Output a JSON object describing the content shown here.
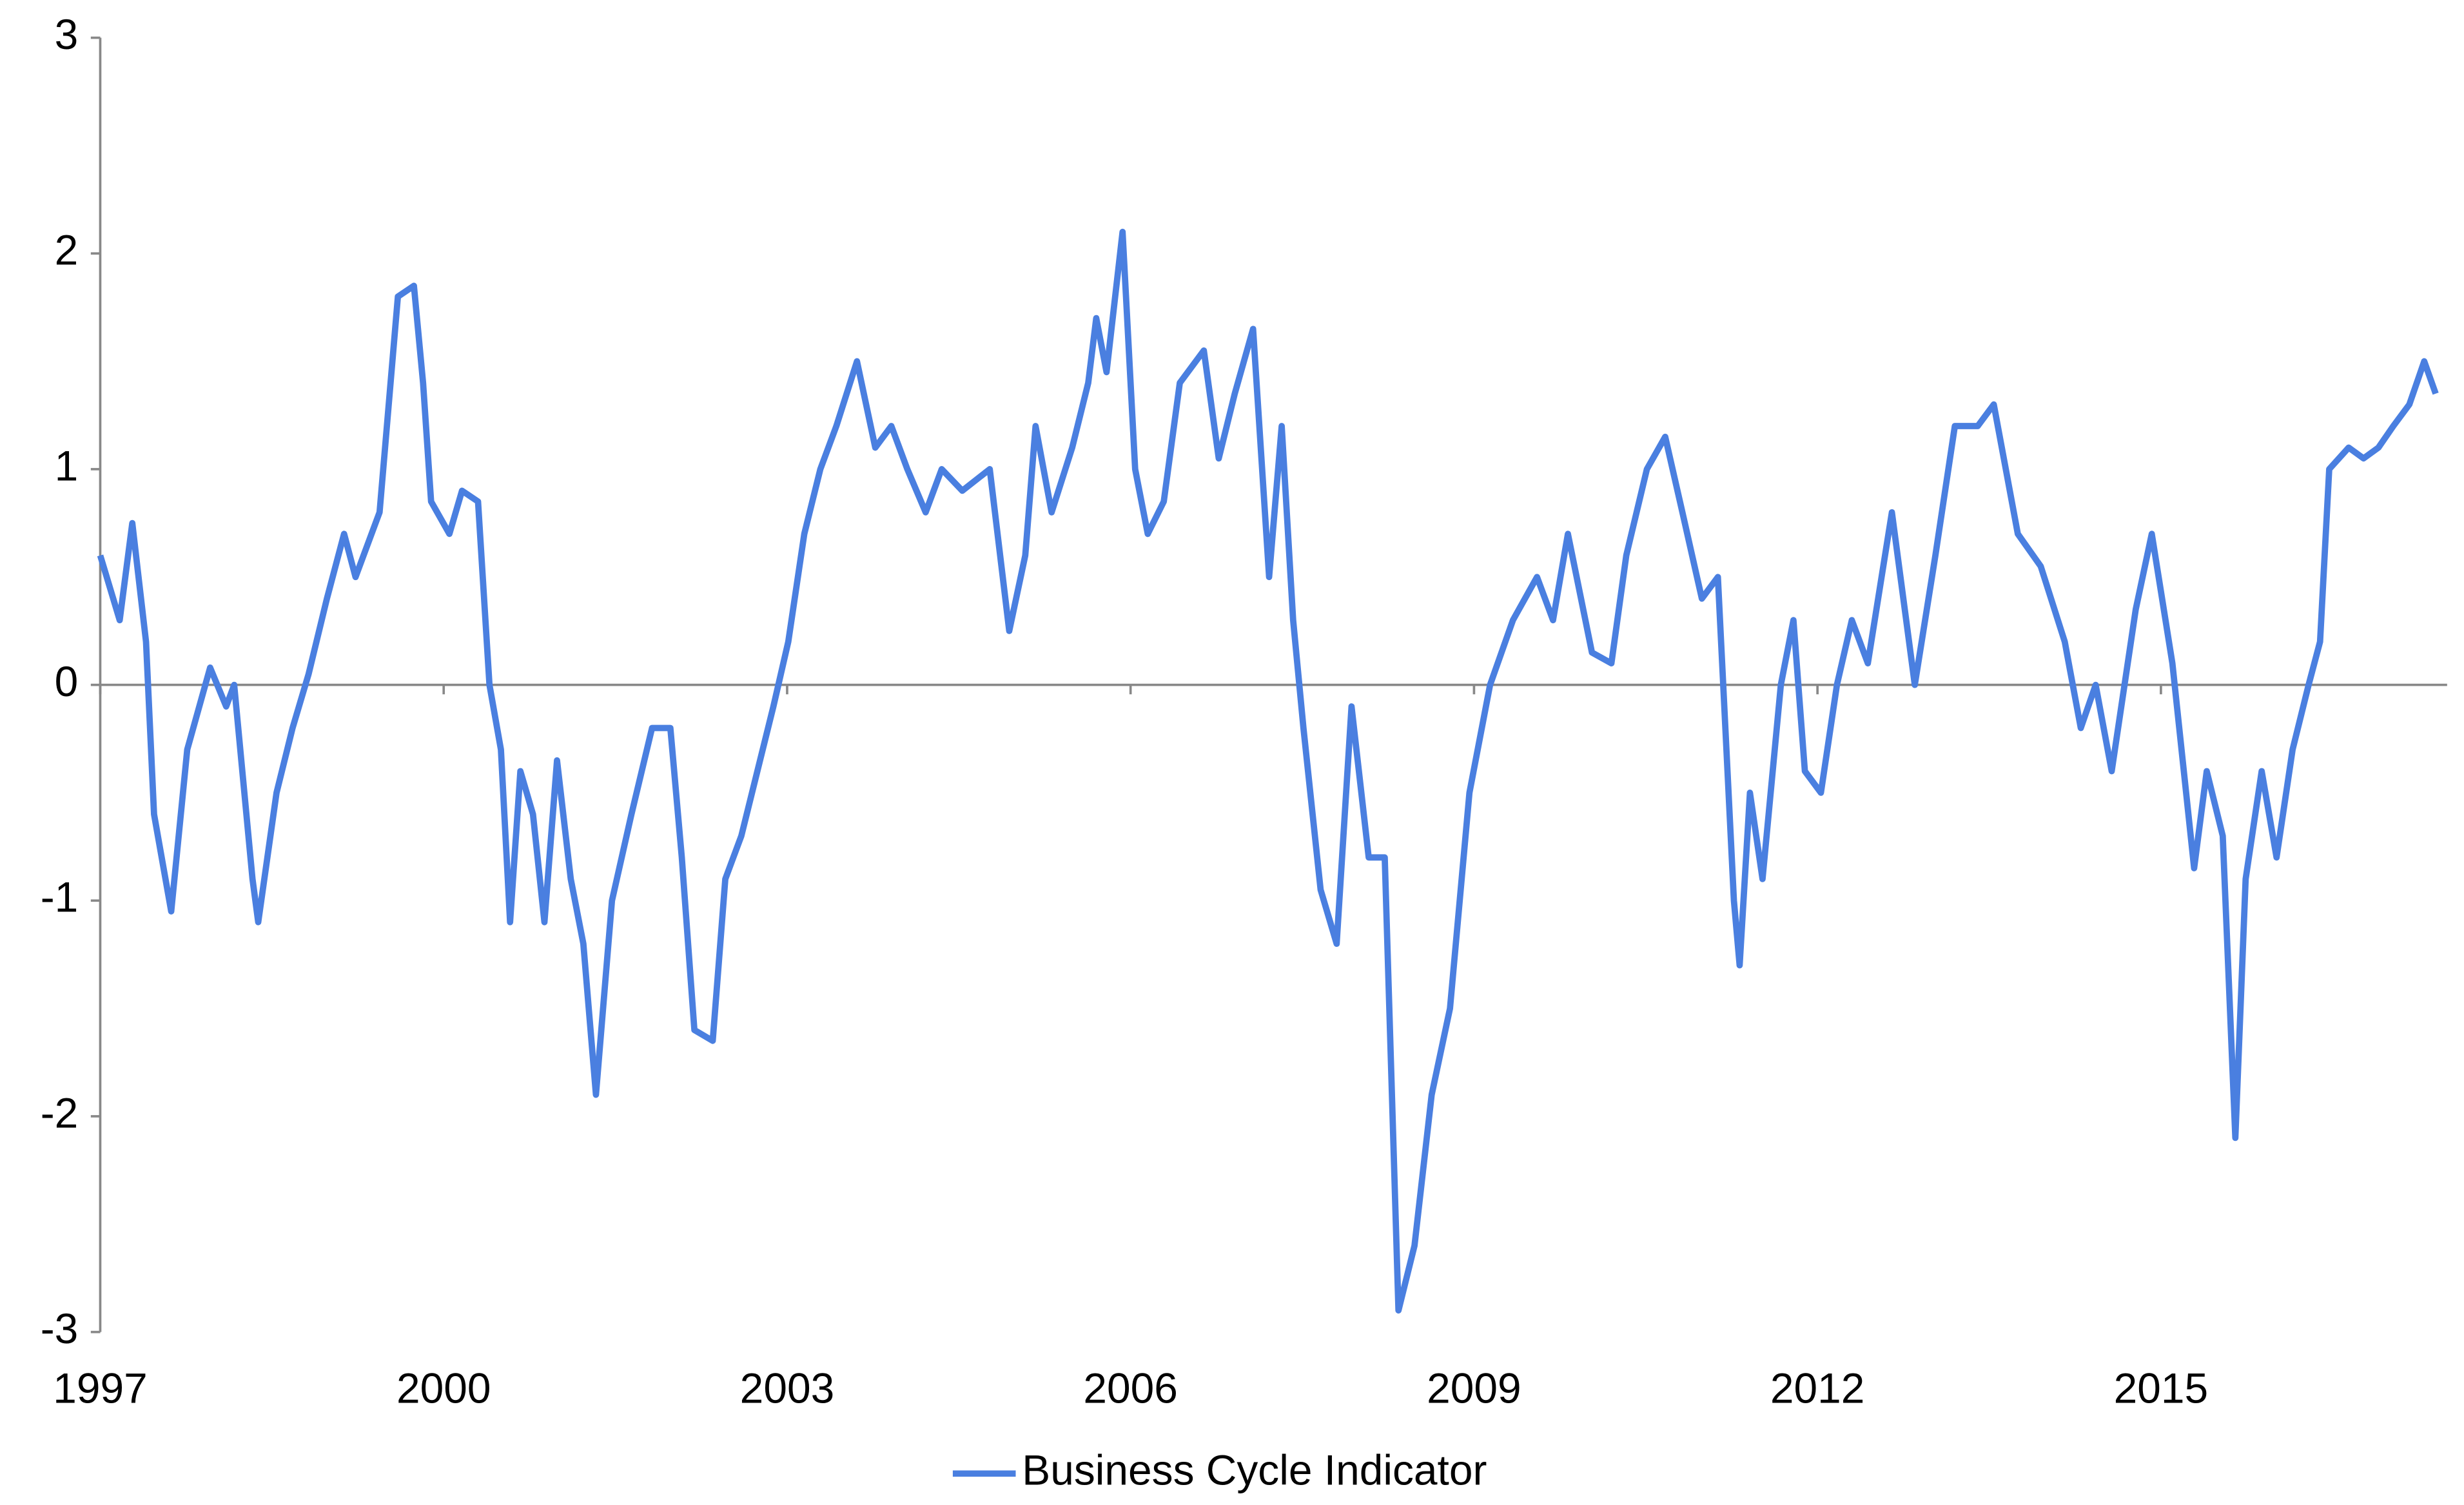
{
  "chart_data": {
    "type": "line",
    "x": [
      1997.0,
      1997.17,
      1997.28,
      1997.4,
      1997.47,
      1997.62,
      1997.76,
      1997.96,
      1998.1,
      1998.17,
      1998.33,
      1998.38,
      1998.54,
      1998.68,
      1998.82,
      1998.98,
      1999.13,
      1999.23,
      1999.44,
      1999.6,
      1999.74,
      1999.82,
      1999.89,
      2000.05,
      2000.16,
      2000.3,
      2000.4,
      2000.5,
      2000.58,
      2000.67,
      2000.78,
      2000.88,
      2000.99,
      2001.11,
      2001.22,
      2001.33,
      2001.47,
      2001.64,
      2001.82,
      2001.98,
      2002.08,
      2002.19,
      2002.35,
      2002.46,
      2002.6,
      2002.74,
      2002.88,
      2003.01,
      2003.15,
      2003.29,
      2003.43,
      2003.61,
      2003.77,
      2003.91,
      2004.05,
      2004.21,
      2004.35,
      2004.53,
      2004.77,
      2004.94,
      2005.08,
      2005.17,
      2005.31,
      2005.49,
      2005.63,
      2005.7,
      2005.79,
      2005.93,
      2006.04,
      2006.15,
      2006.29,
      2006.43,
      2006.64,
      2006.77,
      2006.91,
      2007.07,
      2007.21,
      2007.32,
      2007.42,
      2007.51,
      2007.66,
      2007.8,
      2007.93,
      2008.08,
      2008.22,
      2008.34,
      2008.48,
      2008.63,
      2008.79,
      2008.96,
      2009.14,
      2009.34,
      2009.55,
      2009.69,
      2009.82,
      2010.03,
      2010.2,
      2010.33,
      2010.51,
      2010.67,
      2010.82,
      2010.99,
      2011.13,
      2011.27,
      2011.32,
      2011.41,
      2011.52,
      2011.68,
      2011.79,
      2011.89,
      2012.03,
      2012.17,
      2012.3,
      2012.44,
      2012.65,
      2012.85,
      2013.03,
      2013.2,
      2013.4,
      2013.54,
      2013.75,
      2013.95,
      2014.16,
      2014.3,
      2014.43,
      2014.57,
      2014.78,
      2014.92,
      2015.1,
      2015.19,
      2015.29,
      2015.4,
      2015.54,
      2015.65,
      2015.74,
      2015.88,
      2016.01,
      2016.15,
      2016.29,
      2016.39,
      2016.47,
      2016.64,
      2016.77,
      2016.9,
      2017.03,
      2017.17,
      2017.3,
      2017.4
    ],
    "series": [
      {
        "name": "Business Cycle Indicator",
        "color": "#4a7fe0",
        "values": [
          0.6,
          0.3,
          0.75,
          0.2,
          -0.6,
          -1.05,
          -0.3,
          0.08,
          -0.1,
          0.0,
          -0.9,
          -1.1,
          -0.5,
          -0.2,
          0.05,
          0.4,
          0.7,
          0.5,
          0.8,
          1.8,
          1.85,
          1.4,
          0.85,
          0.7,
          0.9,
          0.85,
          0.0,
          -0.3,
          -1.1,
          -0.4,
          -0.6,
          -1.1,
          -0.35,
          -0.9,
          -1.2,
          -1.9,
          -1.0,
          -0.6,
          -0.2,
          -0.2,
          -0.8,
          -1.6,
          -1.65,
          -0.9,
          -0.7,
          -0.4,
          -0.1,
          0.2,
          0.7,
          1.0,
          1.2,
          1.5,
          1.1,
          1.2,
          1.0,
          0.8,
          1.0,
          0.9,
          1.0,
          0.25,
          0.6,
          1.2,
          0.8,
          1.1,
          1.4,
          1.7,
          1.45,
          2.1,
          1.0,
          0.7,
          0.85,
          1.4,
          1.55,
          1.05,
          1.35,
          1.65,
          0.5,
          1.2,
          0.3,
          -0.2,
          -0.95,
          -1.2,
          -0.1,
          -0.8,
          -0.8,
          -2.9,
          -2.6,
          -1.9,
          -1.5,
          -0.5,
          0.0,
          0.3,
          0.5,
          0.3,
          0.7,
          0.15,
          0.1,
          0.6,
          1.0,
          1.15,
          0.8,
          0.4,
          0.5,
          -1.0,
          -1.3,
          -0.5,
          -0.9,
          0.0,
          0.3,
          -0.4,
          -0.5,
          0.0,
          0.3,
          0.1,
          0.8,
          0.0,
          0.6,
          1.2,
          1.2,
          1.3,
          0.7,
          0.55,
          0.2,
          -0.2,
          0.0,
          -0.4,
          0.35,
          0.7,
          0.1,
          -0.35,
          -0.85,
          -0.4,
          -0.7,
          -2.1,
          -0.9,
          -0.4,
          -0.8,
          -0.3,
          0.0,
          0.2,
          1.0,
          1.1,
          1.05,
          1.1,
          1.2,
          1.3,
          1.5,
          1.35
        ]
      }
    ],
    "xlim": [
      1997,
      2017.5
    ],
    "xticks": [
      1997,
      2000,
      2003,
      2006,
      2009,
      2012,
      2015
    ],
    "ylim": [
      -3,
      3
    ],
    "yticks": [
      -3,
      -2,
      -1,
      0,
      1,
      2,
      3
    ],
    "legend": "bottom"
  }
}
